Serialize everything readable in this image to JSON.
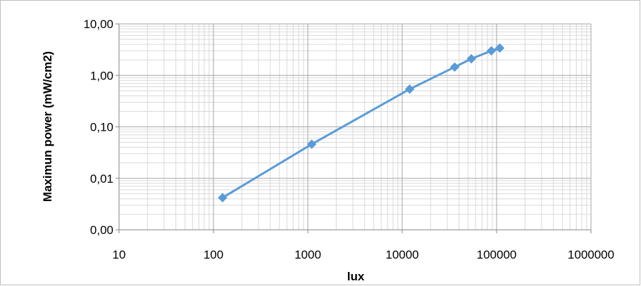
{
  "chart_data": {
    "type": "line",
    "title": "",
    "xlabel": "lux",
    "ylabel": "Maximun power (mW/cm2)",
    "x_scale": "log",
    "y_scale": "log",
    "xlim": [
      10,
      1000000
    ],
    "ylim": [
      0.001,
      10
    ],
    "x_tick_values": [
      10,
      100,
      1000,
      10000,
      100000,
      1000000
    ],
    "x_tick_labels": [
      "10",
      "100",
      "1000",
      "10000",
      "100000",
      "1000000"
    ],
    "y_tick_values": [
      0.001,
      0.01,
      0.1,
      1,
      10
    ],
    "y_tick_labels": [
      "0,00",
      "0,01",
      "0,10",
      "1,00",
      "10,00"
    ],
    "grid": true,
    "legend": "none",
    "colors": {
      "series": "#5b9bd5",
      "major_grid": "#a6a6a6",
      "minor_grid": "#d9d9d9",
      "axis": "#868686"
    },
    "series": [
      {
        "marker": "diamond",
        "x": [
          125,
          1100,
          12000,
          36000,
          54000,
          88000,
          108000
        ],
        "y": [
          0.0042,
          0.046,
          0.54,
          1.45,
          2.1,
          3.0,
          3.4
        ]
      }
    ]
  }
}
